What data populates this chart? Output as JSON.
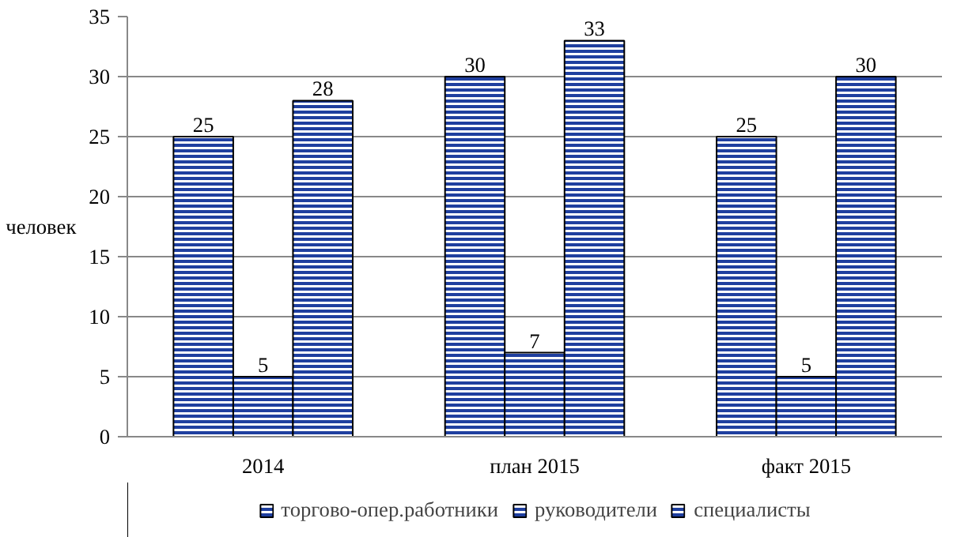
{
  "chart_data": {
    "type": "bar",
    "ylabel": "человек",
    "categories": [
      "2014",
      "план 2015",
      "факт 2015"
    ],
    "series": [
      {
        "name": "торгово-опер.работники",
        "color": "#1f3f9f",
        "values": [
          25,
          30,
          25
        ]
      },
      {
        "name": "руководители",
        "color": "#1f3f9f",
        "values": [
          5,
          7,
          5
        ]
      },
      {
        "name": "специалисты",
        "color": "#1f3f9f",
        "values": [
          28,
          33,
          30
        ]
      }
    ],
    "ylim": [
      0,
      35
    ],
    "yticks": [
      0,
      5,
      10,
      15,
      20,
      25,
      30,
      35
    ],
    "grid": "y",
    "legend": "bottom",
    "data_labels": true
  }
}
